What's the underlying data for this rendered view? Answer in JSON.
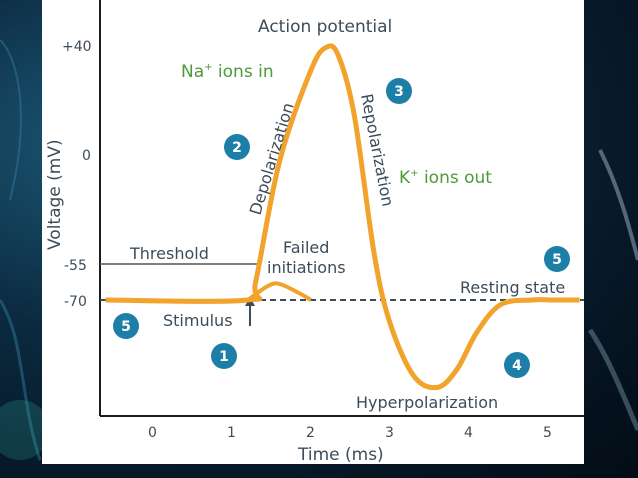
{
  "chart_data": {
    "type": "line",
    "title": "Action potential",
    "xlabel": "Time (ms)",
    "ylabel": "Voltage (mV)",
    "x_ticks": [
      "0",
      "1",
      "2",
      "3",
      "4",
      "5"
    ],
    "y_ticks": [
      "+40",
      "0",
      "-55",
      "-70"
    ],
    "xlim": [
      -0.6,
      5.4
    ],
    "ylim": [
      -110,
      60
    ],
    "series": [
      {
        "x": [
          -0.6,
          1.2,
          1.3,
          1.6,
          2.0,
          2.2,
          2.35,
          2.55,
          2.8,
          3.0,
          3.3,
          3.6,
          3.85,
          4.1,
          4.4,
          4.8,
          5.1,
          5.4
        ],
        "y": [
          -70,
          -70,
          -62,
          -10,
          30,
          40,
          36,
          10,
          -50,
          -80,
          -103,
          -108,
          -100,
          -84,
          -72,
          -70,
          -70,
          -70
        ],
        "color": "#f2a32c"
      }
    ],
    "failed_initiations": [
      {
        "x": [
          1.2,
          1.45,
          1.6,
          1.85,
          2.0
        ],
        "y": [
          -70,
          -64,
          -63,
          -67,
          -70
        ]
      }
    ],
    "threshold": -55,
    "resting": -70
  },
  "labels": {
    "threshold": "Threshold",
    "failed_line1": "Failed",
    "failed_line2": "initiations",
    "resting_state": "Resting state",
    "stimulus": "Stimulus",
    "hyperpolarization": "Hyperpolarization",
    "depolarization": "Depolarization",
    "repolarization": "Repolarization",
    "na_ions_pre": "Na",
    "na_ions_sup": "+",
    "na_ions_post": " ions in",
    "k_ions_pre": "K",
    "k_ions_sup": "+",
    "k_ions_post": " ions out"
  },
  "badges": [
    "1",
    "2",
    "3",
    "4",
    "5",
    "5"
  ],
  "colors": {
    "curve": "#f2a32c",
    "badge": "#1d7fa8",
    "green_text": "#4c9a3a",
    "resting_line": "#3d4c59"
  }
}
